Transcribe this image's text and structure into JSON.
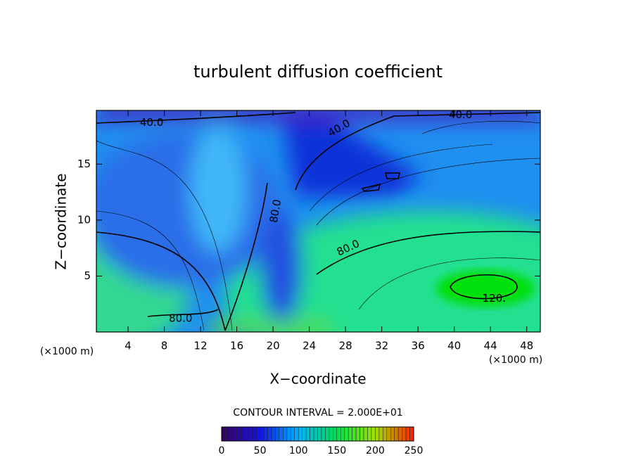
{
  "chart_data": {
    "type": "contour",
    "title": "turbulent diffusion coefficient",
    "xlabel": "X−coordinate",
    "ylabel": "Z−coordinate",
    "x_unit": "(×1000 m)",
    "xlim": [
      0.5,
      49.5
    ],
    "xticks": [
      4,
      8,
      12,
      16,
      20,
      24,
      28,
      32,
      36,
      40,
      44,
      48
    ],
    "ylim": [
      0,
      19.8
    ],
    "yticks": [
      5,
      10,
      15
    ],
    "contour_interval_text": "CONTOUR INTERVAL = 2.000E+01",
    "contour_labels": [
      {
        "value": 40,
        "label": "40.0",
        "x": 6.6,
        "y": 18.7
      },
      {
        "value": 40,
        "label": "40.0",
        "x": 27.3,
        "y": 18.2
      },
      {
        "value": 40,
        "label": "40.0",
        "x": 40.7,
        "y": 19.4
      },
      {
        "value": 80,
        "label": "80.0",
        "x": 20.3,
        "y": 10.8
      },
      {
        "value": 80,
        "label": "80.0",
        "x": 28.3,
        "y": 7.5
      },
      {
        "value": 80,
        "label": "80.0",
        "x": 9.8,
        "y": 1.2
      },
      {
        "value": 120,
        "label": "120.",
        "x": 44.4,
        "y": 3.0
      }
    ],
    "colorbar_lim": [
      0,
      250
    ],
    "colorbar_ticks": [
      0,
      50,
      100,
      150,
      200,
      250
    ],
    "colormap": [
      "#3a0060",
      "#1414e0",
      "#00b4ff",
      "#00e050",
      "#a0e000",
      "#ff2000"
    ]
  }
}
